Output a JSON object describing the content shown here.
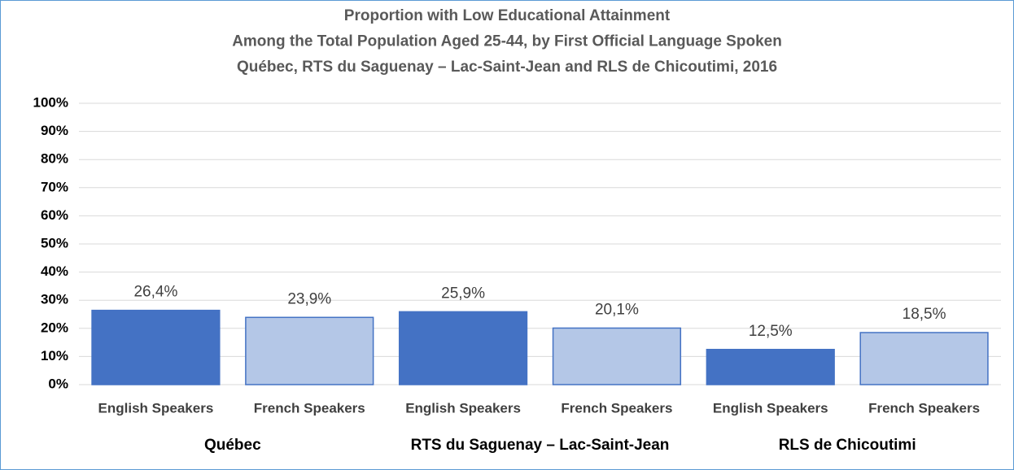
{
  "chart_data": {
    "type": "grouped_bar",
    "title": [
      "Proportion with Low Educational Attainment",
      "Among the Total Population Aged 25-44, by First Official Language Spoken",
      "Québec, RTS du Saguenay – Lac-Saint-Jean and RLS de Chicoutimi, 2016"
    ],
    "colors": [
      "#4472c4",
      "#b4c7e7"
    ],
    "groups": [
      {
        "name": "Québec",
        "categories": [
          "English Speakers",
          "French Speakers"
        ],
        "values": [
          26.4,
          23.9
        ],
        "value_labels": [
          "26,4%",
          "23,9%"
        ]
      },
      {
        "name": "RTS du Saguenay – Lac-Saint-Jean",
        "categories": [
          "English Speakers",
          "French Speakers"
        ],
        "values": [
          25.9,
          20.1
        ],
        "value_labels": [
          "25,9%",
          "20,1%"
        ]
      },
      {
        "name": "RLS de Chicoutimi",
        "categories": [
          "English Speakers",
          "French Speakers"
        ],
        "values": [
          12.5,
          18.5
        ],
        "value_labels": [
          "12,5%",
          "18,5%"
        ]
      }
    ],
    "ylim": [
      0,
      100
    ],
    "yticks": [
      {
        "value": 0,
        "label": "0%"
      },
      {
        "value": 10,
        "label": "10%"
      },
      {
        "value": 20,
        "label": "20%"
      },
      {
        "value": 30,
        "label": "30%"
      },
      {
        "value": 40,
        "label": "40%"
      },
      {
        "value": 50,
        "label": "50%"
      },
      {
        "value": 60,
        "label": "60%"
      },
      {
        "value": 70,
        "label": "70%"
      },
      {
        "value": 80,
        "label": "80%"
      },
      {
        "value": 90,
        "label": "90%"
      },
      {
        "value": 100,
        "label": "100%"
      }
    ],
    "grid": true
  }
}
